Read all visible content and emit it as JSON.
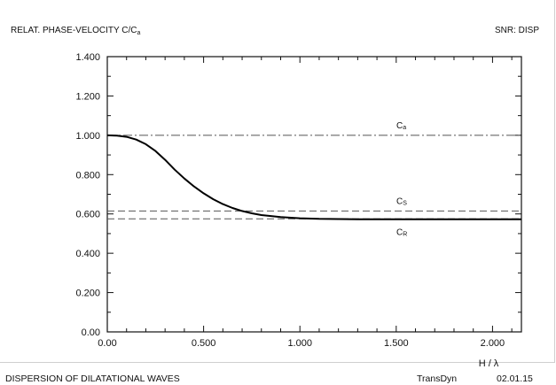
{
  "header": {
    "left": "RELAT. PHASE-VELOCITY  C/C",
    "left_sub": "a",
    "right": "SNR:  DISP"
  },
  "footer": {
    "left": "DISPERSION OF DILATATIONAL WAVES",
    "program": "TransDyn",
    "date": "02.01.15"
  },
  "chart_data": {
    "type": "line",
    "xlabel": "H / λ",
    "ylabel": "",
    "xlim": [
      0,
      2.15
    ],
    "ylim": [
      0,
      1.4
    ],
    "x_ticks": [
      0.0,
      0.5,
      1.0,
      1.5,
      2.0
    ],
    "x_tick_labels": [
      "0.00",
      "0.500",
      "1.000",
      "1.500",
      "2.000"
    ],
    "y_ticks": [
      0.0,
      0.2,
      0.4,
      0.6,
      0.8,
      1.0,
      1.2,
      1.4
    ],
    "y_tick_labels": [
      "0.00",
      "0.200",
      "0.400",
      "0.600",
      "0.800",
      "1.000",
      "1.200",
      "1.400"
    ],
    "grid": false,
    "reference_lines": [
      {
        "name": "C",
        "sub": "a",
        "y": 1.0,
        "style": "dash-dot"
      },
      {
        "name": "C",
        "sub": "S",
        "y": 0.615,
        "style": "dashed"
      },
      {
        "name": "C",
        "sub": "R",
        "y": 0.575,
        "style": "dashed"
      }
    ],
    "series": [
      {
        "x": [
          0.0,
          0.05,
          0.1,
          0.15,
          0.2,
          0.25,
          0.3,
          0.35,
          0.4,
          0.45,
          0.5,
          0.55,
          0.6,
          0.65,
          0.7,
          0.75,
          0.8,
          0.9,
          1.0,
          1.1,
          1.2,
          1.3,
          1.5,
          1.8,
          2.15
        ],
        "y": [
          1.0,
          0.998,
          0.992,
          0.978,
          0.955,
          0.92,
          0.875,
          0.825,
          0.78,
          0.74,
          0.705,
          0.675,
          0.65,
          0.63,
          0.615,
          0.603,
          0.594,
          0.584,
          0.578,
          0.575,
          0.574,
          0.573,
          0.573,
          0.573,
          0.573
        ]
      }
    ]
  }
}
